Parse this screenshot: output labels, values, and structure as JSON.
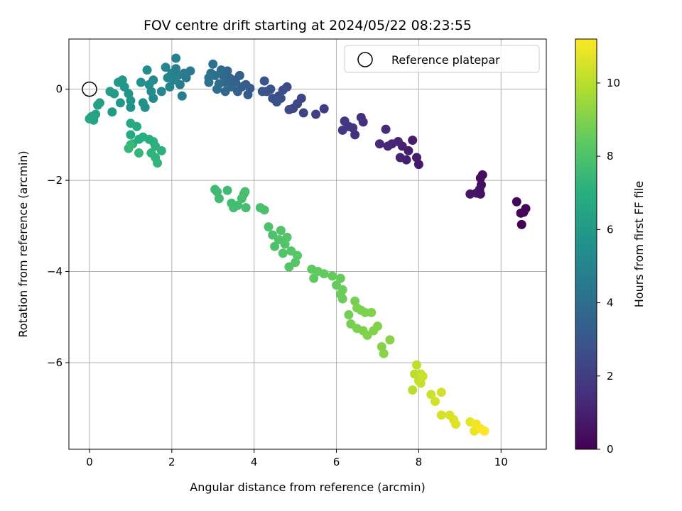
{
  "chart_data": {
    "type": "scatter",
    "title": "FOV centre drift starting at 2024/05/22 08:23:55",
    "xlabel": "Angular distance from reference (arcmin)",
    "ylabel": "Rotation from reference (arcmin)",
    "xlim": [
      -0.5,
      11.1
    ],
    "ylim": [
      -7.9,
      1.1
    ],
    "xticks": [
      0,
      2,
      4,
      6,
      8,
      10
    ],
    "yticks": [
      0,
      -2,
      -4,
      -6
    ],
    "grid": true,
    "legend": {
      "position": "top-right",
      "entries": [
        "Reference platepar"
      ]
    },
    "colorbar": {
      "label": "Hours from first FF file",
      "min": 0,
      "max": 11.2,
      "ticks": [
        0,
        2,
        4,
        6,
        8,
        10
      ],
      "colormap": "viridis"
    },
    "reference_point": {
      "x": 0,
      "y": 0
    },
    "points": [
      {
        "x": 10.5,
        "y": -2.97,
        "c": 0.05
      },
      {
        "x": 10.55,
        "y": -2.7,
        "c": 0.1
      },
      {
        "x": 10.48,
        "y": -2.72,
        "c": 0.12
      },
      {
        "x": 10.6,
        "y": -2.62,
        "c": 0.15
      },
      {
        "x": 10.38,
        "y": -2.47,
        "c": 0.2
      },
      {
        "x": 9.55,
        "y": -1.88,
        "c": 0.35
      },
      {
        "x": 9.5,
        "y": -1.95,
        "c": 0.4
      },
      {
        "x": 9.52,
        "y": -2.1,
        "c": 0.45
      },
      {
        "x": 9.48,
        "y": -2.2,
        "c": 0.5
      },
      {
        "x": 9.5,
        "y": -2.3,
        "c": 0.55
      },
      {
        "x": 9.4,
        "y": -2.28,
        "c": 0.6
      },
      {
        "x": 9.25,
        "y": -2.3,
        "c": 0.65
      },
      {
        "x": 8.0,
        "y": -1.65,
        "c": 0.8
      },
      {
        "x": 7.95,
        "y": -1.5,
        "c": 0.85
      },
      {
        "x": 7.85,
        "y": -1.12,
        "c": 0.9
      },
      {
        "x": 7.75,
        "y": -1.35,
        "c": 0.95
      },
      {
        "x": 7.7,
        "y": -1.55,
        "c": 1.0
      },
      {
        "x": 7.6,
        "y": -1.25,
        "c": 1.05
      },
      {
        "x": 7.55,
        "y": -1.5,
        "c": 1.1
      },
      {
        "x": 7.5,
        "y": -1.15,
        "c": 1.15
      },
      {
        "x": 7.35,
        "y": -1.2,
        "c": 1.2
      },
      {
        "x": 7.25,
        "y": -1.25,
        "c": 1.25
      },
      {
        "x": 7.2,
        "y": -0.88,
        "c": 1.3
      },
      {
        "x": 7.05,
        "y": -1.2,
        "c": 1.35
      },
      {
        "x": 6.65,
        "y": -0.72,
        "c": 1.5
      },
      {
        "x": 6.6,
        "y": -0.62,
        "c": 1.55
      },
      {
        "x": 6.45,
        "y": -1.0,
        "c": 1.6
      },
      {
        "x": 6.4,
        "y": -0.85,
        "c": 1.65
      },
      {
        "x": 6.3,
        "y": -0.82,
        "c": 1.7
      },
      {
        "x": 6.2,
        "y": -0.7,
        "c": 1.75
      },
      {
        "x": 6.15,
        "y": -0.9,
        "c": 1.8
      },
      {
        "x": 5.7,
        "y": -0.43,
        "c": 2.0
      },
      {
        "x": 5.5,
        "y": -0.55,
        "c": 2.1
      },
      {
        "x": 5.2,
        "y": -0.52,
        "c": 2.2
      },
      {
        "x": 5.15,
        "y": -0.2,
        "c": 2.3
      },
      {
        "x": 5.05,
        "y": -0.32,
        "c": 2.35
      },
      {
        "x": 4.95,
        "y": -0.42,
        "c": 2.4
      },
      {
        "x": 4.85,
        "y": -0.45,
        "c": 2.45
      },
      {
        "x": 4.8,
        "y": 0.05,
        "c": 2.55
      },
      {
        "x": 4.7,
        "y": -0.02,
        "c": 2.6
      },
      {
        "x": 4.65,
        "y": -0.2,
        "c": 2.65
      },
      {
        "x": 4.6,
        "y": -0.15,
        "c": 2.7
      },
      {
        "x": 4.55,
        "y": -0.28,
        "c": 2.75
      },
      {
        "x": 4.45,
        "y": -0.2,
        "c": 2.8
      },
      {
        "x": 4.4,
        "y": 0.0,
        "c": 2.85
      },
      {
        "x": 4.3,
        "y": -0.05,
        "c": 2.9
      },
      {
        "x": 4.25,
        "y": 0.18,
        "c": 2.95
      },
      {
        "x": 4.2,
        "y": -0.05,
        "c": 3.0
      },
      {
        "x": 3.9,
        "y": 0.02,
        "c": 3.2
      },
      {
        "x": 3.85,
        "y": -0.12,
        "c": 3.25
      },
      {
        "x": 3.8,
        "y": 0.1,
        "c": 3.3
      },
      {
        "x": 3.7,
        "y": 0.05,
        "c": 3.35
      },
      {
        "x": 3.65,
        "y": 0.3,
        "c": 3.4
      },
      {
        "x": 3.6,
        "y": -0.05,
        "c": 3.45
      },
      {
        "x": 3.55,
        "y": 0.15,
        "c": 3.5
      },
      {
        "x": 3.5,
        "y": 0.2,
        "c": 3.55
      },
      {
        "x": 3.45,
        "y": 0.05,
        "c": 3.6
      },
      {
        "x": 3.4,
        "y": 0.25,
        "c": 3.65
      },
      {
        "x": 3.35,
        "y": 0.4,
        "c": 3.7
      },
      {
        "x": 3.3,
        "y": 0.15,
        "c": 3.75
      },
      {
        "x": 3.3,
        "y": -0.05,
        "c": 3.8
      },
      {
        "x": 3.25,
        "y": 0.3,
        "c": 3.85
      },
      {
        "x": 3.2,
        "y": 0.42,
        "c": 3.9
      },
      {
        "x": 3.15,
        "y": 0.12,
        "c": 3.95
      },
      {
        "x": 3.1,
        "y": 0.0,
        "c": 4.0
      },
      {
        "x": 3.05,
        "y": 0.3,
        "c": 4.05
      },
      {
        "x": 3.0,
        "y": 0.55,
        "c": 4.1
      },
      {
        "x": 2.95,
        "y": 0.35,
        "c": 4.15
      },
      {
        "x": 2.9,
        "y": 0.15,
        "c": 4.2
      },
      {
        "x": 2.9,
        "y": 0.25,
        "c": 4.25
      },
      {
        "x": 2.45,
        "y": 0.4,
        "c": 4.5
      },
      {
        "x": 2.35,
        "y": 0.25,
        "c": 4.55
      },
      {
        "x": 2.3,
        "y": 0.35,
        "c": 4.6
      },
      {
        "x": 2.25,
        "y": -0.15,
        "c": 4.65
      },
      {
        "x": 2.2,
        "y": 0.1,
        "c": 4.7
      },
      {
        "x": 2.15,
        "y": 0.3,
        "c": 4.75
      },
      {
        "x": 2.1,
        "y": 0.45,
        "c": 4.8
      },
      {
        "x": 2.1,
        "y": 0.68,
        "c": 4.85
      },
      {
        "x": 2.05,
        "y": 0.2,
        "c": 4.9
      },
      {
        "x": 2.0,
        "y": 0.35,
        "c": 4.95
      },
      {
        "x": 1.95,
        "y": 0.05,
        "c": 5.0
      },
      {
        "x": 1.9,
        "y": 0.25,
        "c": 5.05
      },
      {
        "x": 1.85,
        "y": 0.48,
        "c": 5.1
      },
      {
        "x": 1.75,
        "y": -0.05,
        "c": 5.15
      },
      {
        "x": 1.55,
        "y": -0.2,
        "c": 5.3
      },
      {
        "x": 1.55,
        "y": 0.2,
        "c": 5.35
      },
      {
        "x": 1.5,
        "y": -0.05,
        "c": 5.4
      },
      {
        "x": 1.45,
        "y": 0.1,
        "c": 5.45
      },
      {
        "x": 1.4,
        "y": 0.42,
        "c": 5.5
      },
      {
        "x": 1.35,
        "y": -0.4,
        "c": 5.55
      },
      {
        "x": 1.3,
        "y": -0.3,
        "c": 5.6
      },
      {
        "x": 1.25,
        "y": 0.15,
        "c": 5.65
      },
      {
        "x": 1.0,
        "y": -0.4,
        "c": 5.7
      },
      {
        "x": 1.0,
        "y": -0.25,
        "c": 5.75
      },
      {
        "x": 0.95,
        "y": -0.1,
        "c": 5.8
      },
      {
        "x": 0.85,
        "y": 0.05,
        "c": 5.85
      },
      {
        "x": 0.8,
        "y": 0.2,
        "c": 5.9
      },
      {
        "x": 0.75,
        "y": -0.3,
        "c": 5.95
      },
      {
        "x": 0.7,
        "y": 0.15,
        "c": 6.0
      },
      {
        "x": 0.6,
        "y": -0.1,
        "c": 6.05
      },
      {
        "x": 0.55,
        "y": -0.5,
        "c": 6.1
      },
      {
        "x": 0.5,
        "y": -0.05,
        "c": 6.15
      },
      {
        "x": 0.25,
        "y": -0.3,
        "c": 6.3
      },
      {
        "x": 0.2,
        "y": -0.35,
        "c": 6.35
      },
      {
        "x": 0.15,
        "y": -0.55,
        "c": 6.4
      },
      {
        "x": 0.1,
        "y": -0.68,
        "c": 6.45
      },
      {
        "x": 0.05,
        "y": -0.6,
        "c": 6.5
      },
      {
        "x": 0.0,
        "y": -0.65,
        "c": 6.55
      },
      {
        "x": 1.0,
        "y": -0.75,
        "c": 6.7
      },
      {
        "x": 1.15,
        "y": -0.82,
        "c": 6.75
      },
      {
        "x": 1.0,
        "y": -1.0,
        "c": 6.8
      },
      {
        "x": 1.05,
        "y": -1.2,
        "c": 6.85
      },
      {
        "x": 1.2,
        "y": -1.1,
        "c": 6.9
      },
      {
        "x": 1.3,
        "y": -1.05,
        "c": 6.95
      },
      {
        "x": 1.45,
        "y": -1.1,
        "c": 7.0
      },
      {
        "x": 1.55,
        "y": -1.15,
        "c": 7.05
      },
      {
        "x": 1.6,
        "y": -1.25,
        "c": 7.1
      },
      {
        "x": 1.75,
        "y": -1.35,
        "c": 7.15
      },
      {
        "x": 1.5,
        "y": -1.4,
        "c": 7.2
      },
      {
        "x": 1.6,
        "y": -1.5,
        "c": 7.25
      },
      {
        "x": 1.65,
        "y": -1.62,
        "c": 7.3
      },
      {
        "x": 1.2,
        "y": -1.4,
        "c": 7.35
      },
      {
        "x": 0.95,
        "y": -1.3,
        "c": 7.4
      },
      {
        "x": 1.0,
        "y": -1.22,
        "c": 7.45
      },
      {
        "x": 3.05,
        "y": -2.2,
        "c": 7.6
      },
      {
        "x": 3.1,
        "y": -2.25,
        "c": 7.62
      },
      {
        "x": 3.15,
        "y": -2.4,
        "c": 7.65
      },
      {
        "x": 3.35,
        "y": -2.22,
        "c": 7.68
      },
      {
        "x": 3.45,
        "y": -2.5,
        "c": 7.7
      },
      {
        "x": 3.5,
        "y": -2.6,
        "c": 7.72
      },
      {
        "x": 3.6,
        "y": -2.55,
        "c": 7.75
      },
      {
        "x": 3.7,
        "y": -2.4,
        "c": 7.78
      },
      {
        "x": 3.75,
        "y": -2.3,
        "c": 7.8
      },
      {
        "x": 3.8,
        "y": -2.6,
        "c": 7.82
      },
      {
        "x": 3.78,
        "y": -2.25,
        "c": 7.85
      },
      {
        "x": 4.15,
        "y": -2.6,
        "c": 7.88
      },
      {
        "x": 4.25,
        "y": -2.65,
        "c": 7.9
      },
      {
        "x": 4.35,
        "y": -3.02,
        "c": 7.95
      },
      {
        "x": 4.45,
        "y": -3.2,
        "c": 7.97
      },
      {
        "x": 4.5,
        "y": -3.45,
        "c": 8.0
      },
      {
        "x": 4.6,
        "y": -3.3,
        "c": 8.02
      },
      {
        "x": 4.65,
        "y": -3.1,
        "c": 8.05
      },
      {
        "x": 4.7,
        "y": -3.6,
        "c": 8.07
      },
      {
        "x": 4.75,
        "y": -3.4,
        "c": 8.1
      },
      {
        "x": 4.8,
        "y": -3.25,
        "c": 8.12
      },
      {
        "x": 4.85,
        "y": -3.9,
        "c": 8.15
      },
      {
        "x": 4.9,
        "y": -3.55,
        "c": 8.17
      },
      {
        "x": 5.0,
        "y": -3.8,
        "c": 8.2
      },
      {
        "x": 5.05,
        "y": -3.65,
        "c": 8.22
      },
      {
        "x": 5.4,
        "y": -3.95,
        "c": 8.4
      },
      {
        "x": 5.45,
        "y": -4.15,
        "c": 8.42
      },
      {
        "x": 5.55,
        "y": -4.0,
        "c": 8.45
      },
      {
        "x": 5.7,
        "y": -4.05,
        "c": 8.48
      },
      {
        "x": 5.9,
        "y": -4.1,
        "c": 8.5
      },
      {
        "x": 6.0,
        "y": -4.3,
        "c": 8.52
      },
      {
        "x": 6.1,
        "y": -4.15,
        "c": 8.55
      },
      {
        "x": 6.1,
        "y": -4.5,
        "c": 8.58
      },
      {
        "x": 6.15,
        "y": -4.4,
        "c": 8.6
      },
      {
        "x": 6.15,
        "y": -4.6,
        "c": 8.62
      },
      {
        "x": 6.3,
        "y": -4.95,
        "c": 8.8
      },
      {
        "x": 6.35,
        "y": -5.15,
        "c": 8.82
      },
      {
        "x": 6.45,
        "y": -4.65,
        "c": 8.85
      },
      {
        "x": 6.5,
        "y": -4.8,
        "c": 8.88
      },
      {
        "x": 6.5,
        "y": -5.25,
        "c": 8.9
      },
      {
        "x": 6.6,
        "y": -4.85,
        "c": 8.92
      },
      {
        "x": 6.65,
        "y": -5.3,
        "c": 8.95
      },
      {
        "x": 6.7,
        "y": -4.9,
        "c": 8.98
      },
      {
        "x": 6.75,
        "y": -5.4,
        "c": 9.0
      },
      {
        "x": 6.85,
        "y": -4.9,
        "c": 9.02
      },
      {
        "x": 6.9,
        "y": -5.3,
        "c": 9.05
      },
      {
        "x": 7.0,
        "y": -5.2,
        "c": 9.08
      },
      {
        "x": 7.1,
        "y": -5.65,
        "c": 9.1
      },
      {
        "x": 7.15,
        "y": -5.8,
        "c": 9.12
      },
      {
        "x": 7.3,
        "y": -5.5,
        "c": 9.15
      },
      {
        "x": 7.85,
        "y": -6.6,
        "c": 10.0
      },
      {
        "x": 7.9,
        "y": -6.25,
        "c": 10.05
      },
      {
        "x": 7.95,
        "y": -6.05,
        "c": 10.1
      },
      {
        "x": 8.0,
        "y": -6.4,
        "c": 10.15
      },
      {
        "x": 8.05,
        "y": -6.25,
        "c": 10.2
      },
      {
        "x": 8.05,
        "y": -6.45,
        "c": 10.25
      },
      {
        "x": 8.1,
        "y": -6.3,
        "c": 10.3
      },
      {
        "x": 8.3,
        "y": -6.7,
        "c": 10.35
      },
      {
        "x": 8.4,
        "y": -6.85,
        "c": 10.4
      },
      {
        "x": 8.55,
        "y": -6.65,
        "c": 10.45
      },
      {
        "x": 8.55,
        "y": -7.15,
        "c": 10.5
      },
      {
        "x": 8.75,
        "y": -7.15,
        "c": 10.55
      },
      {
        "x": 8.85,
        "y": -7.25,
        "c": 10.6
      },
      {
        "x": 8.9,
        "y": -7.35,
        "c": 10.65
      },
      {
        "x": 9.25,
        "y": -7.3,
        "c": 10.8
      },
      {
        "x": 9.35,
        "y": -7.5,
        "c": 10.9
      },
      {
        "x": 9.4,
        "y": -7.35,
        "c": 11.0
      },
      {
        "x": 9.5,
        "y": -7.45,
        "c": 11.1
      },
      {
        "x": 9.6,
        "y": -7.5,
        "c": 11.2
      }
    ]
  }
}
